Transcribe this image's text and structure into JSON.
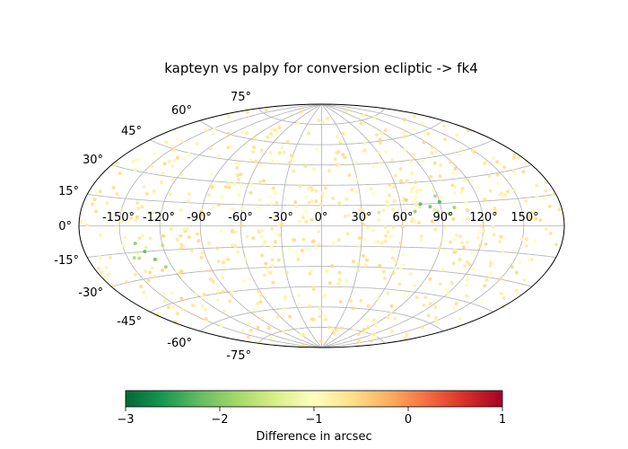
{
  "chart_data": {
    "type": "scatter",
    "projection": "aitoff",
    "title": "kapteyn vs palpy for conversion ecliptic -> fk4",
    "lon_tick_labels": [
      "-150°",
      "-120°",
      "-90°",
      "-60°",
      "-30°",
      "0°",
      "30°",
      "60°",
      "90°",
      "120°",
      "150°"
    ],
    "lat_tick_labels": [
      "-75°",
      "-60°",
      "-45°",
      "-30°",
      "-15°",
      "0°",
      "15°",
      "30°",
      "45°",
      "60°",
      "75°"
    ],
    "grid": true,
    "colormap": "RdYlGn_r",
    "colorbar": {
      "label": "Difference in arcsec",
      "range": [
        -3,
        1
      ],
      "tick_labels": [
        "−3",
        "−2",
        "−1",
        "0",
        "1"
      ],
      "orientation": "horizontal",
      "placement": "bottom"
    },
    "series": [
      {
        "description_of_distribution": "points spread roughly uniformly over the sphere; values mostly near -0.7, with greener clusters near lon 60..110, lat 10..20 and lon -150..-120, lat -10..-25",
        "points": [
          {
            "lon": 75,
            "lat": 15,
            "value": -2.3
          },
          {
            "lon": 82,
            "lat": 13,
            "value": -2.2
          },
          {
            "lon": 90,
            "lat": 16,
            "value": -2.4
          },
          {
            "lon": 70,
            "lat": 10,
            "value": -2.0
          },
          {
            "lon": 100,
            "lat": 12,
            "value": -1.9
          },
          {
            "lon": 88,
            "lat": 20,
            "value": -1.8
          },
          {
            "lon": 65,
            "lat": 18,
            "value": -1.6
          },
          {
            "lon": 95,
            "lat": 8,
            "value": -1.7
          },
          {
            "lon": -135,
            "lat": -15,
            "value": -2.3
          },
          {
            "lon": -130,
            "lat": -20,
            "value": -2.2
          },
          {
            "lon": -140,
            "lat": -10,
            "value": -2.0
          },
          {
            "lon": -125,
            "lat": -25,
            "value": -1.9
          },
          {
            "lon": -145,
            "lat": -18,
            "value": -1.8
          },
          {
            "lon": -120,
            "lat": -12,
            "value": -1.6
          }
        ]
      }
    ]
  }
}
